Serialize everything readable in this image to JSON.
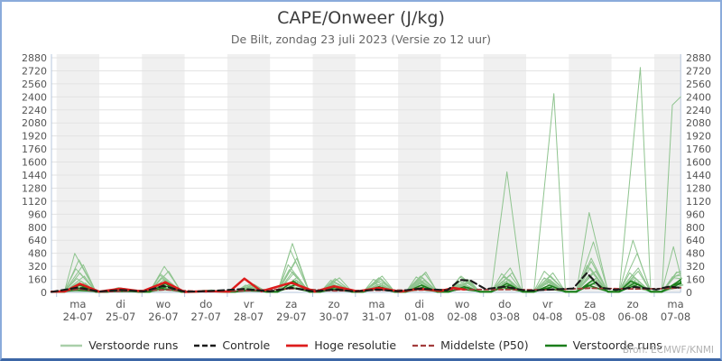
{
  "header": {
    "title": "CAPE/Onweer (J/kg)",
    "subtitle": "De Bilt, zondag 23 juli 2023 (Versie zo 12 uur)"
  },
  "source_note": "Bron: ECMWF/KNMI",
  "chart_data": {
    "type": "line",
    "title": "CAPE/Onweer (J/kg)",
    "subtitle": "De Bilt, zondag 23 juli 2023 (Versie zo 12 uur)",
    "ylabel": "",
    "ylim": [
      0,
      2880
    ],
    "yticks": [
      0,
      160,
      320,
      480,
      640,
      800,
      960,
      1120,
      1280,
      1440,
      1600,
      1760,
      1920,
      2080,
      2240,
      2400,
      2560,
      2720,
      2880
    ],
    "grid": true,
    "legend_position": "bottom",
    "x_days": [
      {
        "dow": "ma",
        "date": "24-07"
      },
      {
        "dow": "di",
        "date": "25-07"
      },
      {
        "dow": "wo",
        "date": "26-07"
      },
      {
        "dow": "do",
        "date": "27-07"
      },
      {
        "dow": "vr",
        "date": "28-07"
      },
      {
        "dow": "za",
        "date": "29-07"
      },
      {
        "dow": "zo",
        "date": "30-07"
      },
      {
        "dow": "ma",
        "date": "31-07"
      },
      {
        "dow": "di",
        "date": "01-08"
      },
      {
        "dow": "wo",
        "date": "02-08"
      },
      {
        "dow": "do",
        "date": "03-08"
      },
      {
        "dow": "vr",
        "date": "04-08"
      },
      {
        "dow": "za",
        "date": "05-08"
      },
      {
        "dow": "zo",
        "date": "06-08"
      },
      {
        "dow": "ma",
        "date": "07-08"
      }
    ],
    "colors": {
      "band": "#f0f0f0",
      "grid": "#e3e3e3",
      "axis": "#b6c7dd",
      "tick_label": "#555555",
      "plume": "#8fc48f",
      "plume_legend": "#a9cfa9",
      "dark_green": "#1b7e1b",
      "control": "#1a1a1a",
      "hires": "#dd1c1c",
      "p50": "#a33c3c"
    },
    "legend": [
      {
        "label": "Verstoorde runs",
        "color": "#a9cfa9",
        "dash": "",
        "width": 2.4
      },
      {
        "label": "Controle",
        "color": "#1a1a1a",
        "dash": "6,3",
        "width": 2.4
      },
      {
        "label": "Hoge resolutie",
        "color": "#dd1c1c",
        "dash": "",
        "width": 2.8
      },
      {
        "label": "Middelste (P50)",
        "color": "#a33c3c",
        "dash": "6,3",
        "width": 2.2
      },
      {
        "label": "Verstoorde runs",
        "color": "#1b7e1b",
        "dash": "",
        "width": 2.4
      }
    ],
    "series": {
      "plume_label": "Verstoorde runs",
      "plume_members_day_peaks": [
        [
          480,
          55,
          210,
          25,
          90,
          340,
          150,
          160,
          190,
          140,
          230,
          180,
          330,
          240,
          190,
          210
        ],
        [
          400,
          45,
          320,
          18,
          70,
          600,
          120,
          130,
          140,
          170,
          170,
          140,
          420,
          190,
          240,
          260
        ],
        [
          340,
          35,
          260,
          30,
          100,
          420,
          180,
          200,
          230,
          110,
          300,
          240,
          260,
          300,
          160,
          180
        ],
        [
          290,
          60,
          180,
          15,
          55,
          280,
          90,
          110,
          160,
          190,
          140,
          110,
          200,
          150,
          560,
          200
        ],
        [
          240,
          28,
          140,
          22,
          45,
          230,
          160,
          180,
          120,
          90,
          1480,
          160,
          240,
          180,
          130,
          150
        ],
        [
          200,
          40,
          110,
          12,
          80,
          190,
          70,
          90,
          250,
          130,
          110,
          2440,
          180,
          130,
          170,
          190
        ],
        [
          170,
          22,
          90,
          28,
          35,
          520,
          140,
          70,
          90,
          200,
          190,
          130,
          980,
          210,
          110,
          130
        ],
        [
          140,
          50,
          75,
          10,
          60,
          160,
          110,
          140,
          180,
          80,
          90,
          200,
          620,
          160,
          140,
          160
        ],
        [
          115,
          30,
          60,
          20,
          30,
          130,
          50,
          120,
          70,
          150,
          240,
          90,
          150,
          2760,
          90,
          110
        ],
        [
          95,
          18,
          150,
          8,
          95,
          110,
          130,
          60,
          110,
          60,
          70,
          170,
          300,
          640,
          200,
          230
        ],
        [
          75,
          42,
          45,
          16,
          25,
          380,
          90,
          170,
          150,
          120,
          160,
          80,
          120,
          480,
          120,
          140
        ],
        [
          60,
          25,
          230,
          6,
          50,
          90,
          60,
          50,
          60,
          100,
          120,
          260,
          90,
          110,
          2300,
          2400
        ],
        [
          45,
          15,
          35,
          14,
          40,
          250,
          170,
          100,
          200,
          70,
          80,
          120,
          380,
          90,
          250,
          240
        ],
        [
          35,
          35,
          120,
          9,
          20,
          150,
          40,
          80,
          40,
          160,
          210,
          70,
          160,
          260,
          80,
          100
        ],
        [
          25,
          12,
          70,
          19,
          65,
          70,
          100,
          40,
          130,
          50,
          60,
          150,
          70,
          70,
          180,
          170
        ],
        [
          15,
          8,
          28,
          5,
          15,
          60,
          30,
          30,
          80,
          40,
          130,
          60,
          110,
          140,
          60,
          90
        ]
      ],
      "dark_label": "Verstoorde runs",
      "dark_members_day_peaks": [
        [
          60,
          20,
          80,
          10,
          30,
          100,
          50,
          60,
          70,
          60,
          90,
          70,
          120,
          100,
          110,
          140
        ],
        [
          30,
          10,
          50,
          8,
          20,
          60,
          30,
          40,
          40,
          40,
          60,
          50,
          90,
          140,
          90,
          120
        ],
        [
          90,
          25,
          110,
          12,
          40,
          140,
          70,
          70,
          90,
          70,
          110,
          90,
          150,
          120,
          130,
          160
        ]
      ],
      "control": {
        "label": "Controle",
        "points": [
          [
            -0.12,
            6
          ],
          [
            0.5,
            60
          ],
          [
            1.0,
            10
          ],
          [
            1.5,
            30
          ],
          [
            2.05,
            12
          ],
          [
            2.5,
            80
          ],
          [
            3.0,
            8
          ],
          [
            3.55,
            16
          ],
          [
            4.4,
            42
          ],
          [
            5.0,
            12
          ],
          [
            5.5,
            58
          ],
          [
            6.0,
            14
          ],
          [
            6.55,
            36
          ],
          [
            7.0,
            12
          ],
          [
            7.5,
            36
          ],
          [
            8.0,
            14
          ],
          [
            8.5,
            46
          ],
          [
            9.15,
            25
          ],
          [
            9.45,
            152
          ],
          [
            9.7,
            145
          ],
          [
            10.05,
            40
          ],
          [
            10.5,
            72
          ],
          [
            11.0,
            20
          ],
          [
            11.6,
            36
          ],
          [
            12.1,
            48
          ],
          [
            12.42,
            238
          ],
          [
            12.75,
            60
          ],
          [
            13.1,
            30
          ],
          [
            13.55,
            66
          ],
          [
            14.05,
            36
          ],
          [
            14.35,
            72
          ],
          [
            14.62,
            55
          ]
        ]
      },
      "hires": {
        "label": "Hoge resolutie",
        "points": [
          [
            -0.12,
            8
          ],
          [
            0.2,
            12
          ],
          [
            0.55,
            105
          ],
          [
            1.0,
            10
          ],
          [
            1.5,
            45
          ],
          [
            2.0,
            12
          ],
          [
            2.55,
            125
          ],
          [
            3.0,
            6
          ],
          [
            3.5,
            16
          ],
          [
            4.05,
            10
          ],
          [
            4.4,
            170
          ],
          [
            4.8,
            14
          ],
          [
            5.5,
            120
          ],
          [
            6.05,
            10
          ],
          [
            6.5,
            75
          ],
          [
            7.05,
            12
          ],
          [
            7.55,
            55
          ],
          [
            8.05,
            10
          ],
          [
            8.5,
            45
          ],
          [
            9.0,
            18
          ],
          [
            9.3,
            55
          ],
          [
            9.55,
            35
          ]
        ]
      },
      "p50": {
        "label": "Middelste (P50)",
        "points": [
          [
            -0.12,
            5
          ],
          [
            0.55,
            42
          ],
          [
            1.05,
            6
          ],
          [
            1.5,
            16
          ],
          [
            2.55,
            32
          ],
          [
            3.5,
            8
          ],
          [
            4.5,
            22
          ],
          [
            5.55,
            46
          ],
          [
            6.5,
            20
          ],
          [
            7.5,
            26
          ],
          [
            8.55,
            30
          ],
          [
            9.5,
            36
          ],
          [
            10.55,
            36
          ],
          [
            11.5,
            30
          ],
          [
            12.5,
            52
          ],
          [
            13.55,
            42
          ],
          [
            14.2,
            46
          ],
          [
            14.62,
            58
          ]
        ]
      }
    }
  }
}
